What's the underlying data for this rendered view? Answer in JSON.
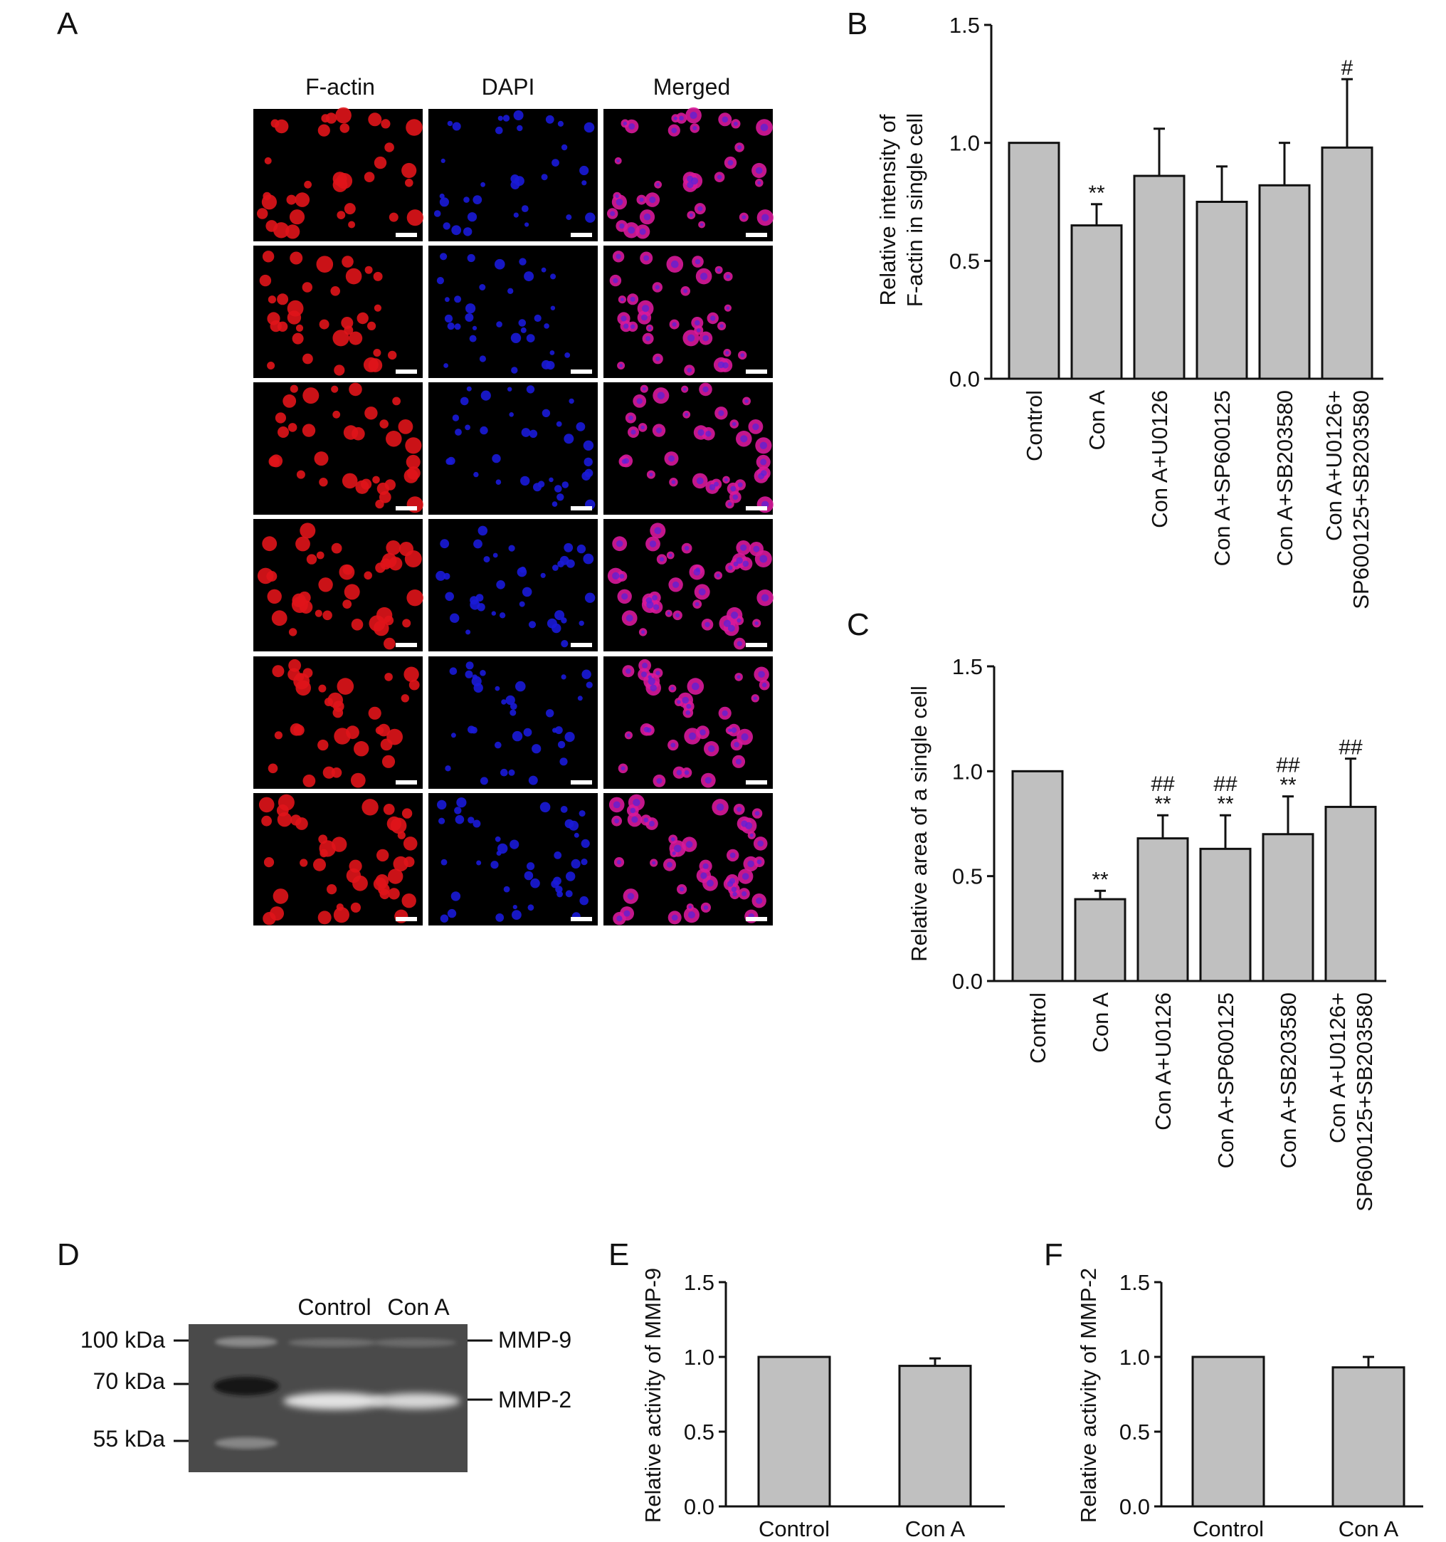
{
  "figure": {
    "panels": {
      "A": {
        "letter": "A",
        "columns": [
          "F-actin",
          "DAPI",
          "Merged"
        ],
        "rows": [
          [
            "Control"
          ],
          [
            "Con A"
          ],
          [
            "Con A+U0126"
          ],
          [
            "Con A+SP600125"
          ],
          [
            "Con A+SB203580"
          ],
          [
            "Con A+U0126+",
            "SP600125+SB203580"
          ]
        ],
        "channel_colors": {
          "F-actin": "#e0141a",
          "DAPI": "#1a1ad8",
          "Merged": "#d8189a"
        }
      },
      "D": {
        "letter": "D",
        "lanes": [
          "Control",
          "Con A"
        ],
        "markers": [
          "100 kDa",
          "70 kDa",
          "55 kDa"
        ],
        "bands": [
          "MMP-9",
          "MMP-2"
        ]
      }
    }
  },
  "chart_data": [
    {
      "panel": "B",
      "type": "bar",
      "title": "",
      "ylabel": [
        "Relative intensity of",
        "F-actin in single cell"
      ],
      "xlabel": "",
      "categories": [
        [
          "Control"
        ],
        [
          "Con A"
        ],
        [
          "Con A+U0126"
        ],
        [
          "Con A+SP600125"
        ],
        [
          "Con A+SB203580"
        ],
        [
          "Con A+U0126+",
          "SP600125+SB203580"
        ]
      ],
      "values": [
        1.0,
        0.65,
        0.86,
        0.75,
        0.82,
        0.98
      ],
      "errors": [
        0,
        0.09,
        0.2,
        0.15,
        0.18,
        0.29
      ],
      "significance": [
        [
          "",
          ""
        ],
        [
          "**",
          ""
        ],
        [
          "",
          ""
        ],
        [
          "",
          ""
        ],
        [
          "",
          ""
        ],
        [
          "",
          "#"
        ]
      ],
      "ylim": [
        0,
        1.5
      ],
      "yticks": [
        "0.0",
        "0.5",
        "1.0",
        "1.5"
      ],
      "bar_color": "#c0c0c0"
    },
    {
      "panel": "C",
      "type": "bar",
      "title": "",
      "ylabel": [
        "Relative area of a single cell"
      ],
      "xlabel": "",
      "categories": [
        [
          "Control"
        ],
        [
          "Con A"
        ],
        [
          "Con A+U0126"
        ],
        [
          "Con A+SP600125"
        ],
        [
          "Con A+SB203580"
        ],
        [
          "Con A+U0126+",
          "SP600125+SB203580"
        ]
      ],
      "values": [
        1.0,
        0.39,
        0.68,
        0.63,
        0.7,
        0.83
      ],
      "errors": [
        0,
        0.04,
        0.11,
        0.16,
        0.18,
        0.23
      ],
      "significance": [
        [
          "",
          ""
        ],
        [
          "**",
          ""
        ],
        [
          "**",
          "##"
        ],
        [
          "**",
          "##"
        ],
        [
          "**",
          "##"
        ],
        [
          "",
          "##"
        ]
      ],
      "ylim": [
        0,
        1.5
      ],
      "yticks": [
        "0.0",
        "0.5",
        "1.0",
        "1.5"
      ],
      "bar_color": "#c0c0c0"
    },
    {
      "panel": "E",
      "type": "bar",
      "title": "",
      "ylabel": [
        "Relative activity of MMP-9"
      ],
      "xlabel": "",
      "categories": [
        [
          "Control"
        ],
        [
          "Con A"
        ]
      ],
      "values": [
        1.0,
        0.94
      ],
      "errors": [
        0,
        0.05
      ],
      "ylim": [
        0,
        1.5
      ],
      "yticks": [
        "0.0",
        "0.5",
        "1.0",
        "1.5"
      ],
      "bar_color": "#c0c0c0"
    },
    {
      "panel": "F",
      "type": "bar",
      "title": "",
      "ylabel": [
        "Relative activity of MMP-2"
      ],
      "xlabel": "",
      "categories": [
        [
          "Control"
        ],
        [
          "Con A"
        ]
      ],
      "values": [
        1.0,
        0.93
      ],
      "errors": [
        0,
        0.07
      ],
      "ylim": [
        0,
        1.5
      ],
      "yticks": [
        "0.0",
        "0.5",
        "1.0",
        "1.5"
      ],
      "bar_color": "#c0c0c0"
    }
  ]
}
